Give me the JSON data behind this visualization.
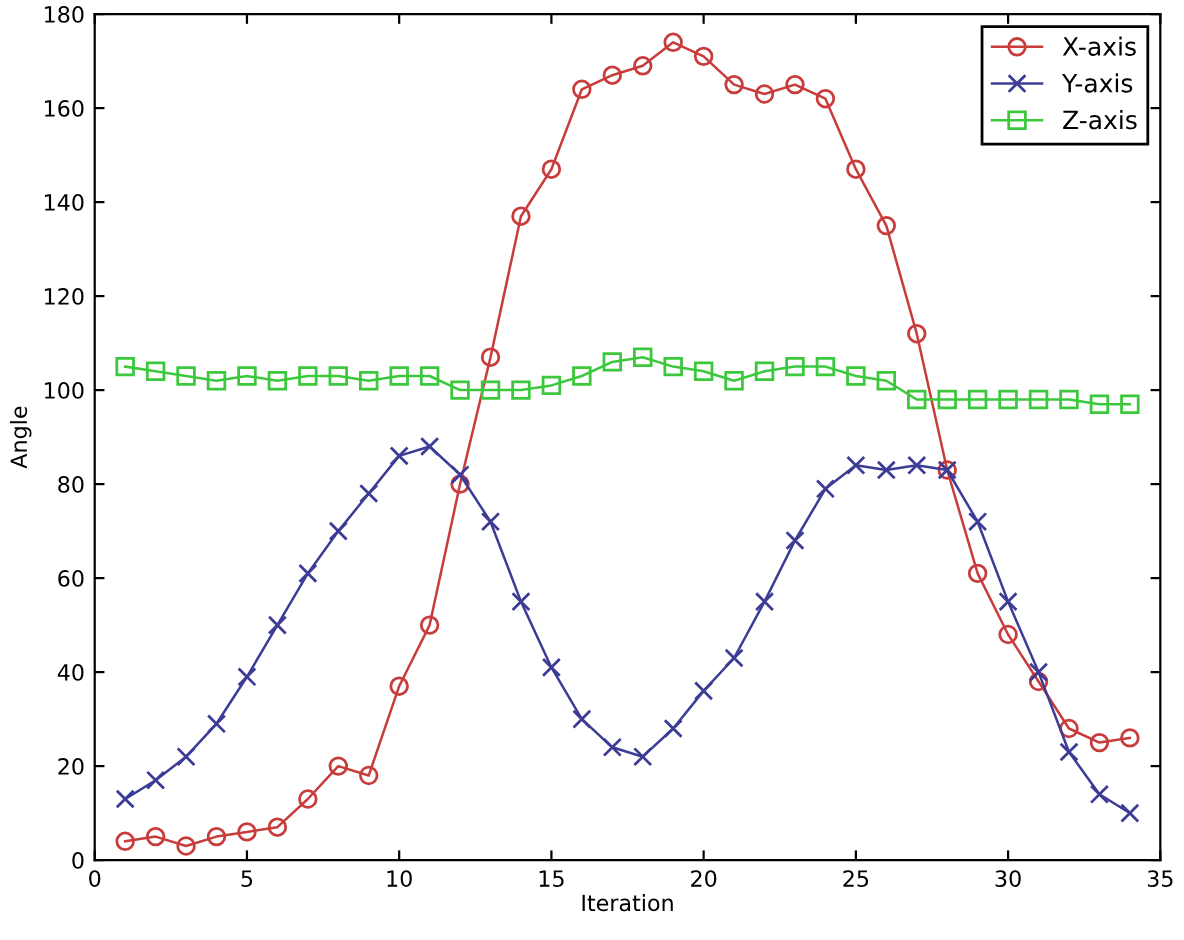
{
  "chart_data": {
    "type": "line",
    "xlabel": "Iteration",
    "ylabel": "Angle",
    "x": [
      1,
      2,
      3,
      4,
      5,
      6,
      7,
      8,
      9,
      10,
      11,
      12,
      13,
      14,
      15,
      16,
      17,
      18,
      19,
      20,
      21,
      22,
      23,
      24,
      25,
      26,
      27,
      28,
      29,
      30,
      31,
      32,
      33,
      34
    ],
    "series": [
      {
        "name": "X-axis",
        "color": "#c83c3c",
        "marker": "circle",
        "values": [
          4,
          5,
          3,
          5,
          6,
          7,
          13,
          20,
          18,
          37,
          50,
          80,
          107,
          137,
          147,
          164,
          167,
          169,
          174,
          171,
          165,
          163,
          165,
          162,
          147,
          135,
          112,
          83,
          61,
          48,
          38,
          28,
          25,
          26
        ]
      },
      {
        "name": "Y-axis",
        "color": "#3c3c96",
        "marker": "cross",
        "values": [
          13,
          17,
          22,
          29,
          39,
          50,
          61,
          70,
          78,
          86,
          88,
          82,
          72,
          55,
          41,
          30,
          24,
          22,
          28,
          36,
          43,
          55,
          68,
          79,
          84,
          83,
          84,
          83,
          72,
          55,
          40,
          23,
          14,
          10
        ]
      },
      {
        "name": "Z-axis",
        "color": "#3cc83c",
        "marker": "square",
        "values": [
          105,
          104,
          103,
          102,
          103,
          102,
          103,
          103,
          102,
          103,
          103,
          100,
          100,
          100,
          101,
          103,
          106,
          107,
          105,
          104,
          102,
          104,
          105,
          105,
          103,
          102,
          98,
          98,
          98,
          98,
          98,
          98,
          97,
          97
        ]
      }
    ],
    "xlim": [
      0,
      35
    ],
    "xticks": [
      0,
      5,
      10,
      15,
      20,
      25,
      30,
      35
    ],
    "ylim": [
      0,
      180
    ],
    "yticks": [
      0,
      20,
      40,
      60,
      80,
      100,
      120,
      140,
      160,
      180
    ],
    "grid": false,
    "legend": "top right",
    "line_style": "solid"
  }
}
